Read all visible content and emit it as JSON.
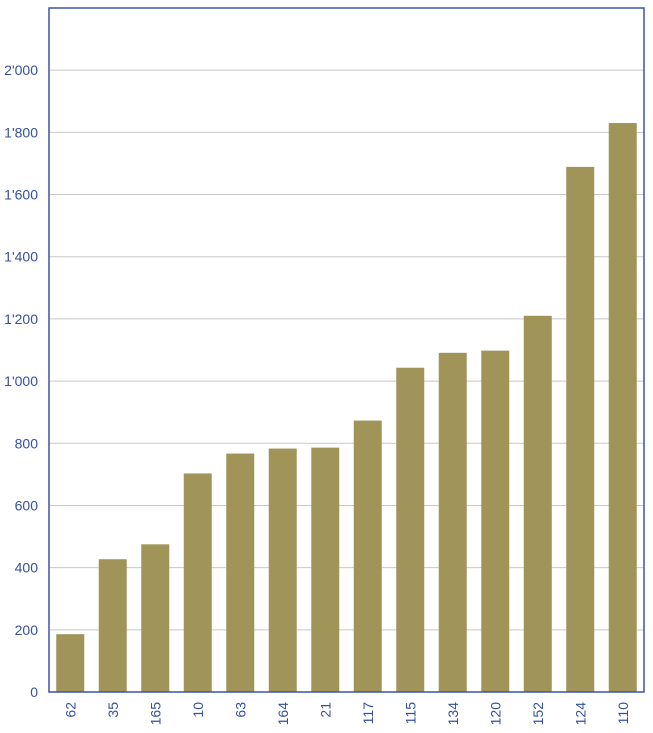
{
  "chart_data": {
    "type": "bar",
    "title": "",
    "xlabel": "",
    "ylabel": "",
    "categories": [
      "62",
      "35",
      "165",
      "10",
      "63",
      "164",
      "21",
      "117",
      "115",
      "134",
      "120",
      "152",
      "124",
      "110"
    ],
    "values": [
      186,
      427,
      475,
      703,
      767,
      783,
      786,
      873,
      1043,
      1091,
      1098,
      1210,
      1689,
      1830
    ],
    "ylim": [
      0,
      2200
    ],
    "yticks": [
      0,
      200,
      400,
      600,
      800,
      1000,
      1200,
      1400,
      1600,
      1800,
      2000
    ],
    "ytick_labels": [
      "0",
      "200",
      "400",
      "600",
      "800",
      "1'000",
      "1'200",
      "1'400",
      "1'600",
      "1'800",
      "2'000"
    ],
    "grid": true,
    "legend": "none",
    "colors": {
      "bar": "#A09458",
      "axis": "#3A55AC",
      "grid": "#C8C8C8",
      "text": "#3450A0"
    }
  }
}
